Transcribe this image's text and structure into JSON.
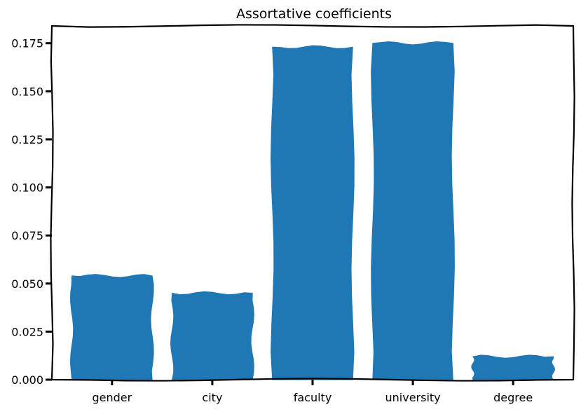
{
  "chart_data": {
    "type": "bar",
    "title": "Assortative coefficients",
    "xlabel": "",
    "ylabel": "",
    "categories": [
      "gender",
      "city",
      "faculty",
      "university",
      "degree"
    ],
    "values": [
      0.054,
      0.045,
      0.173,
      0.175,
      0.012
    ],
    "ylim": [
      0,
      0.184
    ],
    "yticks": [
      "0.000",
      "0.025",
      "0.050",
      "0.075",
      "0.100",
      "0.125",
      "0.150",
      "0.175"
    ],
    "ytick_values": [
      0,
      0.025,
      0.05,
      0.075,
      0.1,
      0.125,
      0.15,
      0.175
    ],
    "bar_color": "#1f77b4",
    "grid": false,
    "legend": "none"
  }
}
